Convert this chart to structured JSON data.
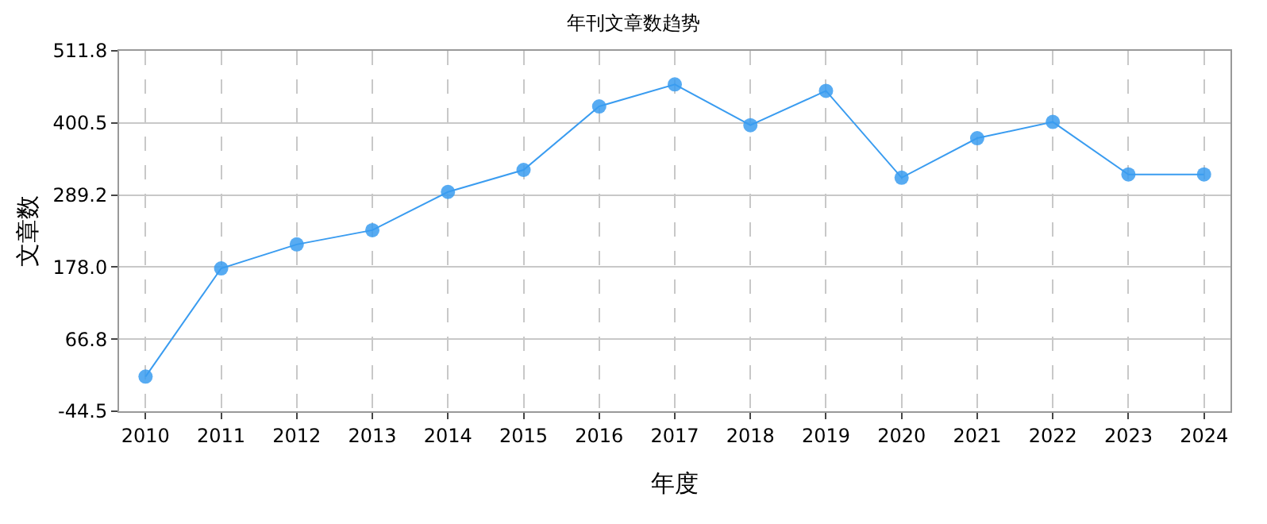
{
  "chart_data": {
    "type": "line",
    "title": "年刊文章数趋势",
    "xlabel": "年度",
    "ylabel": "文章数",
    "categories": [
      "2010",
      "2011",
      "2012",
      "2013",
      "2014",
      "2015",
      "2016",
      "2017",
      "2018",
      "2019",
      "2020",
      "2021",
      "2022",
      "2023",
      "2024"
    ],
    "series": [
      {
        "color": "#3a9cf0",
        "values": [
          9,
          176,
          213,
          235,
          294,
          328,
          426,
          460,
          397,
          450,
          316,
          377,
          402,
          321,
          321
        ]
      }
    ],
    "ylim": [
      -44.5,
      511.8
    ],
    "yticks": [
      -44.5,
      66.8,
      {
        "value": 178,
        "label": "178.0"
      },
      289.2,
      400.5,
      511.8
    ],
    "grid": true,
    "marker": "circle",
    "legend": false
  }
}
